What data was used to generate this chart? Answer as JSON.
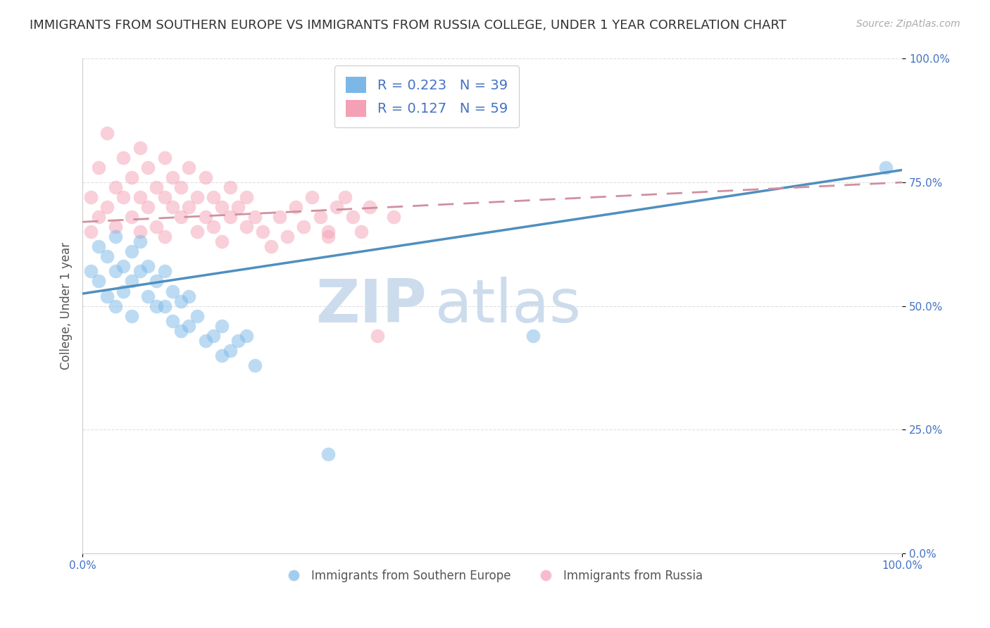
{
  "title": "IMMIGRANTS FROM SOUTHERN EUROPE VS IMMIGRANTS FROM RUSSIA COLLEGE, UNDER 1 YEAR CORRELATION CHART",
  "source": "Source: ZipAtlas.com",
  "ylabel": "College, Under 1 year",
  "xlim": [
    0,
    1
  ],
  "ylim": [
    0,
    1
  ],
  "xtick_labels": [
    "0.0%",
    "100.0%"
  ],
  "ytick_labels": [
    "0.0%",
    "25.0%",
    "50.0%",
    "75.0%",
    "100.0%"
  ],
  "ytick_vals": [
    0.0,
    0.25,
    0.5,
    0.75,
    1.0
  ],
  "blue_color": "#7bb8e8",
  "pink_color": "#f4a0b5",
  "blue_line_color": "#4f8fbf",
  "pink_line_color": "#d05070",
  "pink_dash_color": "#d090a0",
  "watermark_zip": "ZIP",
  "watermark_atlas": "atlas",
  "watermark_color": "#ccdcec",
  "title_fontsize": 13,
  "source_fontsize": 10,
  "blue_scatter_x": [
    0.01,
    0.02,
    0.02,
    0.03,
    0.03,
    0.04,
    0.04,
    0.04,
    0.05,
    0.05,
    0.06,
    0.06,
    0.06,
    0.07,
    0.07,
    0.08,
    0.08,
    0.09,
    0.09,
    0.1,
    0.1,
    0.11,
    0.11,
    0.12,
    0.12,
    0.13,
    0.13,
    0.14,
    0.15,
    0.16,
    0.17,
    0.17,
    0.18,
    0.19,
    0.2,
    0.21,
    0.55,
    0.98,
    0.3
  ],
  "blue_scatter_y": [
    0.57,
    0.62,
    0.55,
    0.6,
    0.52,
    0.64,
    0.57,
    0.5,
    0.58,
    0.53,
    0.61,
    0.55,
    0.48,
    0.63,
    0.57,
    0.58,
    0.52,
    0.55,
    0.5,
    0.57,
    0.5,
    0.53,
    0.47,
    0.51,
    0.45,
    0.52,
    0.46,
    0.48,
    0.43,
    0.44,
    0.4,
    0.46,
    0.41,
    0.43,
    0.44,
    0.38,
    0.44,
    0.78,
    0.2
  ],
  "pink_scatter_x": [
    0.01,
    0.01,
    0.02,
    0.02,
    0.03,
    0.03,
    0.04,
    0.04,
    0.05,
    0.05,
    0.06,
    0.06,
    0.07,
    0.07,
    0.07,
    0.08,
    0.08,
    0.09,
    0.09,
    0.1,
    0.1,
    0.1,
    0.11,
    0.11,
    0.12,
    0.12,
    0.13,
    0.13,
    0.14,
    0.14,
    0.15,
    0.15,
    0.16,
    0.16,
    0.17,
    0.17,
    0.18,
    0.18,
    0.19,
    0.2,
    0.2,
    0.21,
    0.22,
    0.23,
    0.24,
    0.25,
    0.26,
    0.27,
    0.28,
    0.29,
    0.3,
    0.31,
    0.32,
    0.33,
    0.34,
    0.35,
    0.36,
    0.38,
    0.3
  ],
  "pink_scatter_y": [
    0.72,
    0.65,
    0.78,
    0.68,
    0.85,
    0.7,
    0.74,
    0.66,
    0.8,
    0.72,
    0.76,
    0.68,
    0.82,
    0.72,
    0.65,
    0.78,
    0.7,
    0.74,
    0.66,
    0.72,
    0.8,
    0.64,
    0.7,
    0.76,
    0.68,
    0.74,
    0.78,
    0.7,
    0.65,
    0.72,
    0.76,
    0.68,
    0.72,
    0.66,
    0.7,
    0.63,
    0.68,
    0.74,
    0.7,
    0.66,
    0.72,
    0.68,
    0.65,
    0.62,
    0.68,
    0.64,
    0.7,
    0.66,
    0.72,
    0.68,
    0.65,
    0.7,
    0.72,
    0.68,
    0.65,
    0.7,
    0.44,
    0.68,
    0.64
  ],
  "blue_trend_start_y": 0.525,
  "blue_trend_end_y": 0.775,
  "pink_trend_start_y": 0.67,
  "pink_trend_end_y": 0.75,
  "grid_color": "#e0e0e0",
  "background_color": "#ffffff"
}
